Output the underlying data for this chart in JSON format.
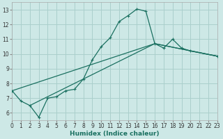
{
  "xlabel": "Humidex (Indice chaleur)",
  "bg_color": "#cde8e6",
  "grid_color": "#aacfcc",
  "line_color": "#1a7060",
  "xlim": [
    0,
    23
  ],
  "ylim": [
    5.5,
    13.5
  ],
  "xticks": [
    0,
    1,
    2,
    3,
    4,
    5,
    6,
    7,
    8,
    9,
    10,
    11,
    12,
    13,
    14,
    15,
    16,
    17,
    18,
    19,
    20,
    21,
    22,
    23
  ],
  "yticks": [
    6,
    7,
    8,
    9,
    10,
    11,
    12,
    13
  ],
  "curve1_x": [
    0,
    1,
    2,
    3,
    4,
    5,
    6,
    7,
    8,
    9,
    10,
    11,
    12,
    13,
    14,
    15,
    16,
    17,
    18,
    19,
    20,
    23
  ],
  "curve1_y": [
    7.5,
    6.8,
    6.5,
    5.7,
    7.0,
    7.1,
    7.5,
    7.6,
    8.3,
    9.6,
    10.5,
    11.1,
    12.2,
    12.6,
    13.05,
    12.9,
    10.7,
    10.4,
    11.0,
    10.4,
    10.2,
    9.85
  ],
  "line2_x": [
    0,
    16,
    23
  ],
  "line2_y": [
    7.5,
    10.7,
    9.85
  ],
  "line3_x": [
    2,
    16,
    23
  ],
  "line3_y": [
    6.5,
    10.7,
    9.85
  ]
}
